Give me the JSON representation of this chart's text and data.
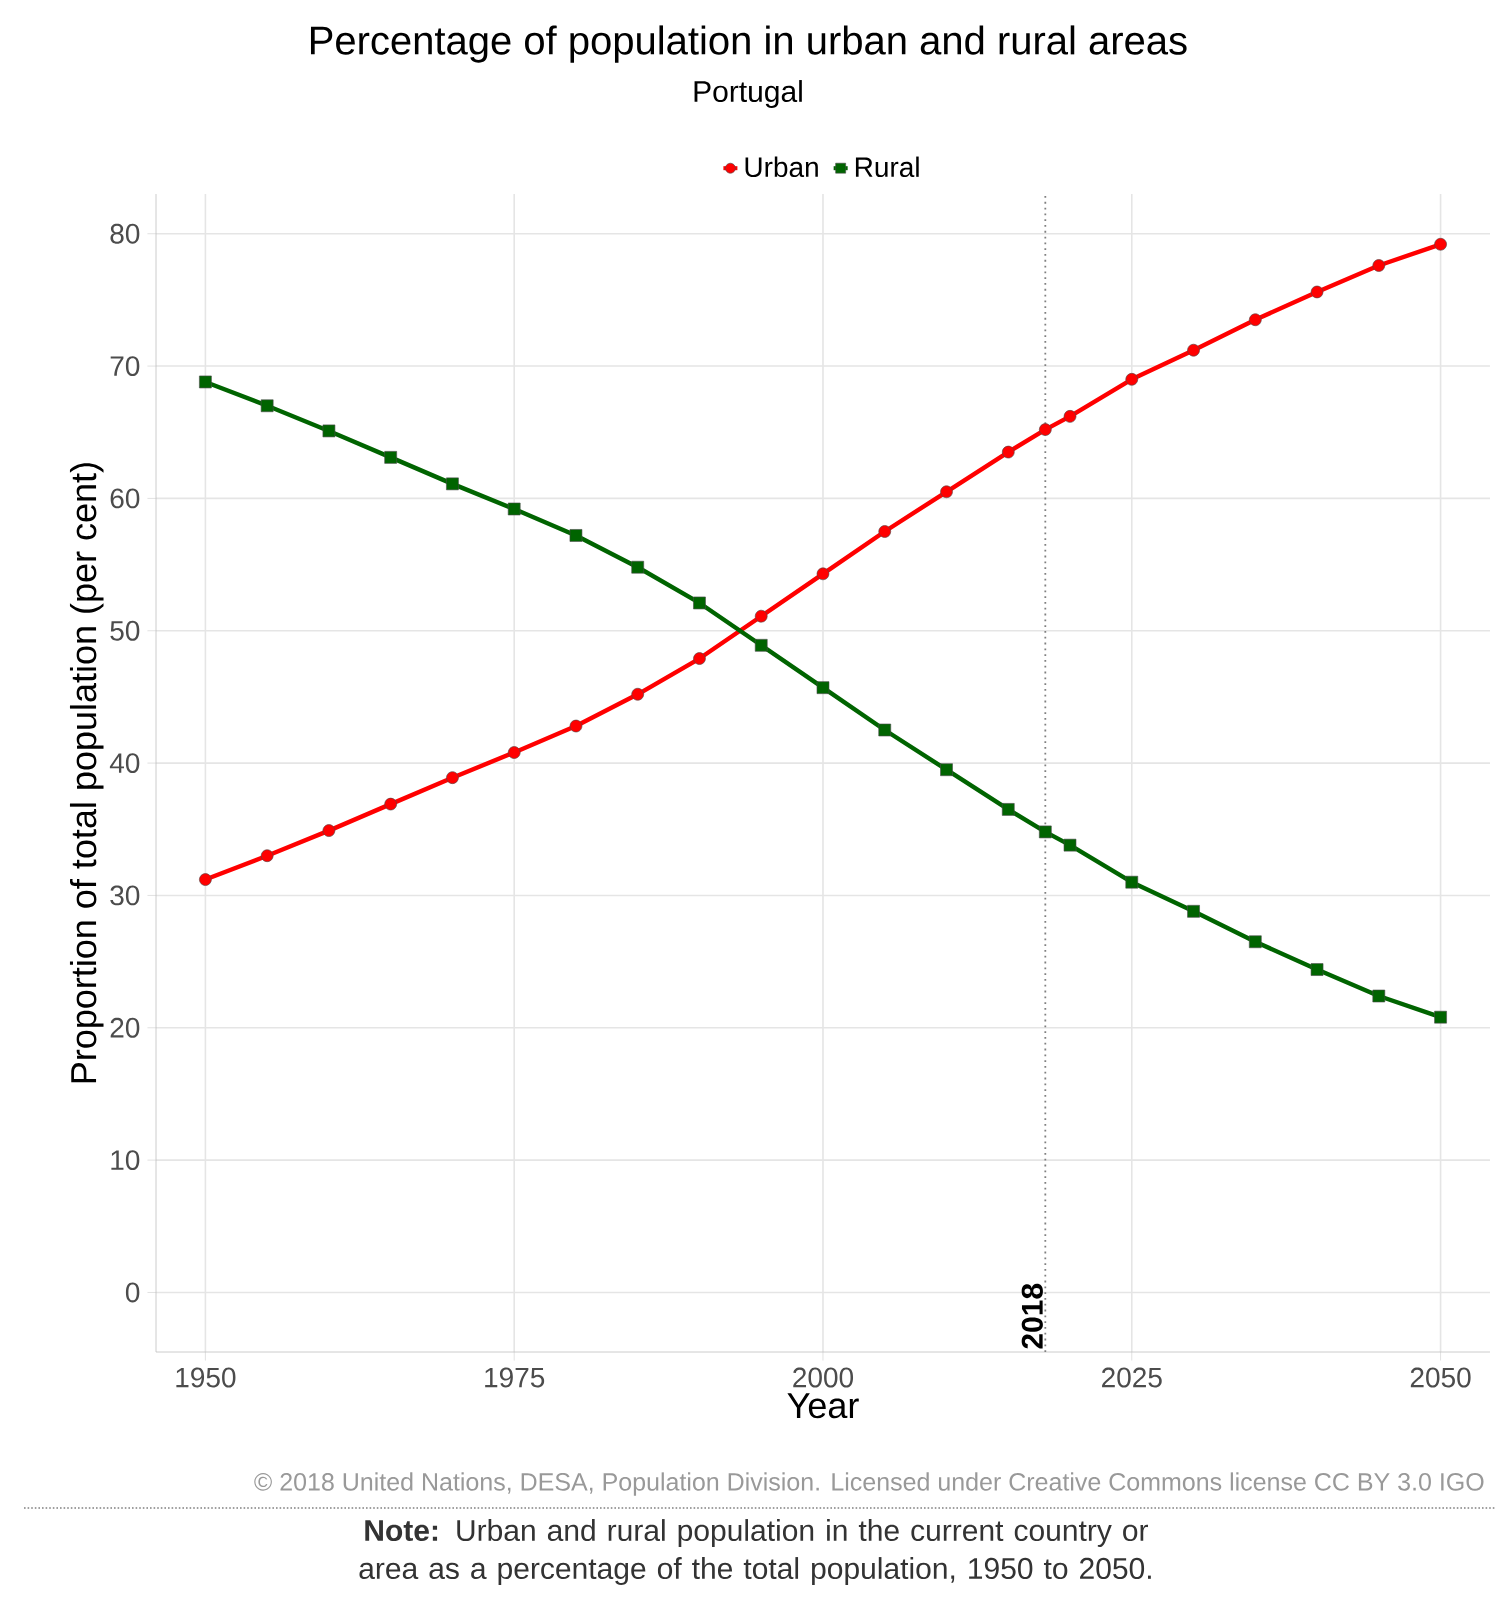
{
  "chart_data": {
    "type": "line",
    "title": "Percentage of population in urban and rural areas",
    "subtitle": "Portugal",
    "xlabel": "Year",
    "ylabel": "Proportion of total population (per cent)",
    "x": [
      1950,
      1955,
      1960,
      1965,
      1970,
      1975,
      1980,
      1985,
      1990,
      1995,
      2000,
      2005,
      2010,
      2015,
      2018,
      2020,
      2025,
      2030,
      2035,
      2040,
      2045,
      2050
    ],
    "series": [
      {
        "name": "Urban",
        "color": "#ff0000",
        "marker": "circle",
        "values": [
          31.2,
          33.0,
          34.9,
          36.9,
          38.9,
          40.8,
          42.8,
          45.2,
          47.9,
          51.1,
          54.3,
          57.5,
          60.5,
          63.5,
          65.2,
          66.2,
          69.0,
          71.2,
          73.5,
          75.6,
          77.6,
          79.2
        ]
      },
      {
        "name": "Rural",
        "color": "#006400",
        "marker": "square",
        "values": [
          68.8,
          67.0,
          65.1,
          63.1,
          61.1,
          59.2,
          57.2,
          54.8,
          52.1,
          48.9,
          45.7,
          42.5,
          39.5,
          36.5,
          34.8,
          33.8,
          31.0,
          28.8,
          26.5,
          24.4,
          22.4,
          20.8
        ]
      }
    ],
    "xlim": [
      1946,
      2054
    ],
    "ylim": [
      -4.5,
      83
    ],
    "xticks": [
      1950,
      1975,
      2000,
      2025,
      2050
    ],
    "yticks": [
      0,
      10,
      20,
      30,
      40,
      50,
      60,
      70,
      80
    ],
    "grid": true,
    "legend": "top",
    "line_style": "solid",
    "ref_lines": [
      {
        "axis": "x",
        "value": 2018,
        "label": "2018",
        "line_style": "dotted",
        "color": "#808080"
      }
    ],
    "annotations": [
      "© 2018 United Nations, DESA, Population Division. Licensed under Creative Commons license CC BY 3.0 IGO",
      "**Note:** Urban and rural population in the current country or area as a percentage of the total population, 1950 to 2050."
    ]
  }
}
